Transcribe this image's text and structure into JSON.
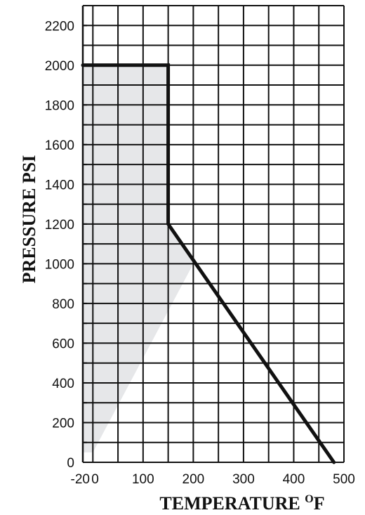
{
  "chart_data": {
    "type": "line",
    "title": "",
    "xlabel": "TEMPERATURE °F",
    "xlabel_main": "TEMPERATURE ",
    "xlabel_sup": "O",
    "xlabel_unit": "F",
    "ylabel": "PRESSURE PSI",
    "xlim": [
      -20,
      500
    ],
    "ylim": [
      0,
      2300
    ],
    "xticks": [
      -20,
      0,
      100,
      200,
      300,
      400,
      500
    ],
    "xtick_labels": [
      "-20",
      "0",
      "100",
      "200",
      "300",
      "400",
      "500"
    ],
    "yticks": [
      0,
      200,
      400,
      600,
      800,
      1000,
      1200,
      1400,
      1600,
      1800,
      2000,
      2200
    ],
    "ytick_labels": [
      "0",
      "200",
      "400",
      "600",
      "800",
      "1000",
      "1200",
      "1400",
      "1600",
      "1800",
      "2000",
      "2200"
    ],
    "grid": true,
    "series": [
      {
        "x": [
          -20,
          150,
          150,
          480
        ],
        "y": [
          2000,
          2000,
          1200,
          0
        ],
        "color": "#111111"
      }
    ],
    "shaded_region": {
      "x": [
        -20,
        150,
        150,
        200,
        0,
        -20
      ],
      "y": [
        2000,
        2000,
        1200,
        1000,
        50,
        50
      ],
      "color": "#e6e7e9"
    },
    "colors": {
      "line": "#111111",
      "grid": "#111111",
      "shade": "#e6e7e9"
    }
  }
}
